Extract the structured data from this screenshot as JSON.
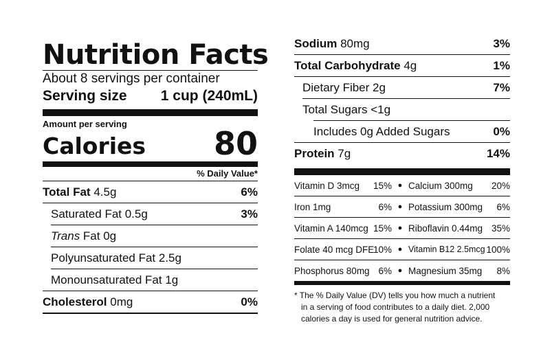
{
  "title": "Nutrition Facts",
  "servings_per_container": "About 8 servings per container",
  "serving_size": {
    "label": "Serving size",
    "value": "1 cup (240mL)"
  },
  "amount_per_serving": "Amount per serving",
  "calories": {
    "label": "Calories",
    "value": "80"
  },
  "daily_value_header": "% Daily Value*",
  "left_nutrients": [
    {
      "name": "Total Fat",
      "amount": "4.5g",
      "dv": "6%"
    },
    {
      "name": "Saturated Fat 0.5g",
      "dv": "3%"
    },
    {
      "name_italic": "Trans",
      "name_rest": " Fat 0g"
    },
    {
      "name": "Polyunsaturated Fat 2.5g"
    },
    {
      "name": "Monounsaturated Fat 1g"
    },
    {
      "name": "Cholesterol",
      "amount": "0mg",
      "dv": "0%"
    }
  ],
  "right_nutrients": [
    {
      "name": "Sodium",
      "amount": "80mg",
      "dv": "3%"
    },
    {
      "name": "Total Carbohydrate",
      "amount": "4g",
      "dv": "1%"
    },
    {
      "name": "Dietary Fiber 2g",
      "dv": "7%"
    },
    {
      "name": "Total Sugars <1g"
    },
    {
      "name": "Includes 0g Added Sugars",
      "dv": "0%"
    },
    {
      "name": "Protein",
      "amount": "7g",
      "dv": "14%"
    }
  ],
  "vitamins": [
    {
      "a_name": "Vitamin D 3mcg",
      "a_dv": "15%",
      "b_name": "Calcium 300mg",
      "b_dv": "20%"
    },
    {
      "a_name": "Iron 1mg",
      "a_dv": "6%",
      "b_name": "Potassium 300mg",
      "b_dv": "6%"
    },
    {
      "a_name": "Vitamin A 140mcg",
      "a_dv": "15%",
      "b_name": "Riboflavin 0.44mg",
      "b_dv": "35%"
    },
    {
      "a_name": "Folate 40 mcg DFE",
      "a_dv": "10%",
      "b_name": "Vitamin B12 2.5mcg",
      "b_dv": "100%"
    },
    {
      "a_name": "Phosphorus 80mg",
      "a_dv": "6%",
      "b_name": "Magnesium 35mg",
      "b_dv": "8%"
    }
  ],
  "footnote": {
    "line1": "* The % Daily Value (DV) tells you how much a nutrient",
    "line2": "in a serving of food contributes to a daily diet. 2,000",
    "line3": "calories a day is used for general nutrition advice."
  }
}
